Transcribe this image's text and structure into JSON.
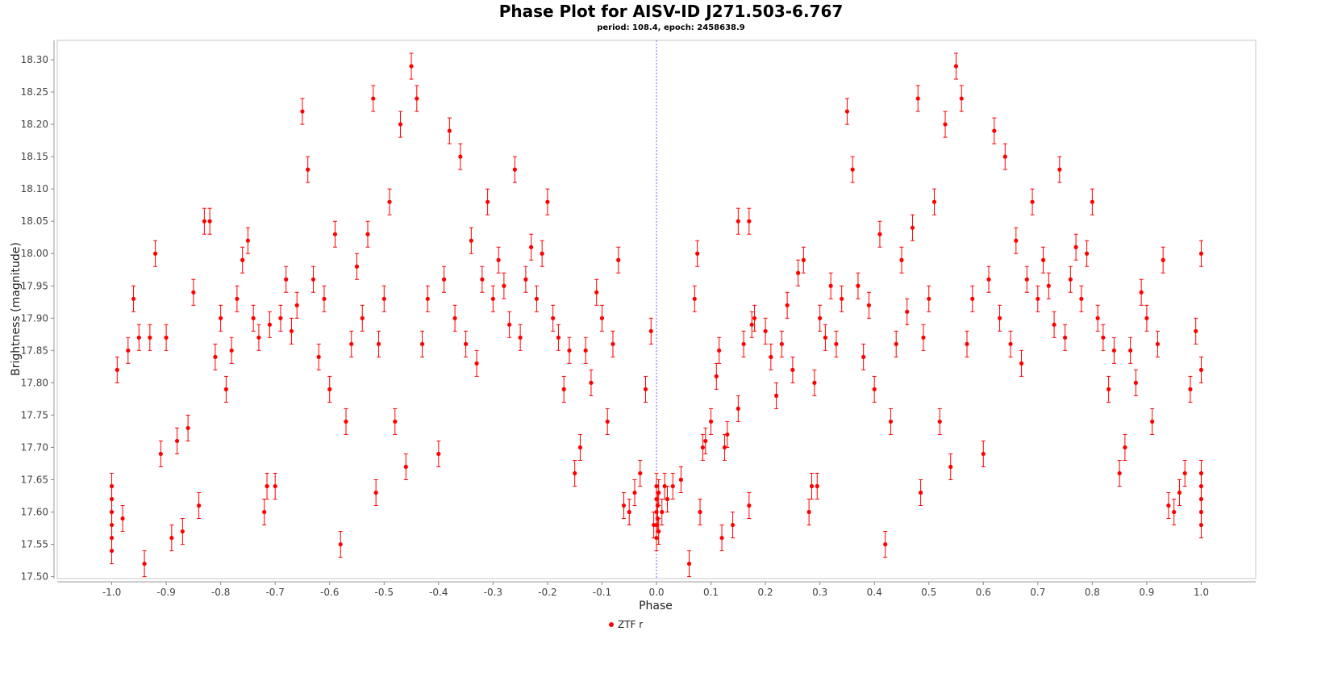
{
  "chart_data": {
    "type": "scatter",
    "title": "Phase Plot for AISV-ID J271.503-6.767",
    "subtitle": "period: 108.4, epoch: 2458638.9",
    "xlabel": "Phase",
    "ylabel": "Brightness (magnitude)",
    "xlim": [
      -1.1,
      1.1
    ],
    "ylim": [
      18.33,
      17.497
    ],
    "y_inverted": true,
    "x_ticks": [
      "-1.0",
      "-0.9",
      "-0.8",
      "-0.7",
      "-0.6",
      "-0.5",
      "-0.4",
      "-0.3",
      "-0.2",
      "-0.1",
      "0.0",
      "0.1",
      "0.2",
      "0.3",
      "0.4",
      "0.5",
      "0.6",
      "0.7",
      "0.8",
      "0.9",
      "1.0"
    ],
    "y_ticks": [
      "17.50",
      "17.55",
      "17.60",
      "17.65",
      "17.70",
      "17.75",
      "17.80",
      "17.85",
      "17.90",
      "17.95",
      "18.00",
      "18.05",
      "18.10",
      "18.15",
      "18.20",
      "18.25",
      "18.30"
    ],
    "reference_line_x": 0.0,
    "grid": false,
    "legend_position": "bottom-center",
    "series": [
      {
        "name": "ZTF r",
        "color": "#ff0000",
        "error_bar": 0.02,
        "points": [
          [
            0.0,
            17.56
          ],
          [
            0.0,
            17.58
          ],
          [
            0.0,
            17.6
          ],
          [
            0.0,
            17.62
          ],
          [
            0.0,
            17.64
          ],
          [
            0.002,
            17.59
          ],
          [
            0.002,
            17.61
          ],
          [
            0.004,
            17.63
          ],
          [
            0.004,
            17.57
          ],
          [
            0.01,
            17.6
          ],
          [
            0.015,
            17.64
          ],
          [
            0.02,
            17.62
          ],
          [
            0.03,
            17.64
          ],
          [
            0.045,
            17.65
          ],
          [
            0.06,
            17.52
          ],
          [
            0.07,
            17.93
          ],
          [
            0.075,
            18.0
          ],
          [
            0.08,
            17.6
          ],
          [
            0.085,
            17.7
          ],
          [
            0.09,
            17.71
          ],
          [
            0.1,
            17.74
          ],
          [
            0.11,
            17.81
          ],
          [
            0.115,
            17.85
          ],
          [
            0.12,
            17.56
          ],
          [
            0.125,
            17.7
          ],
          [
            0.13,
            17.72
          ],
          [
            0.14,
            17.58
          ],
          [
            0.15,
            17.76
          ],
          [
            0.16,
            17.86
          ],
          [
            0.17,
            17.61
          ],
          [
            0.175,
            17.89
          ],
          [
            0.18,
            17.9
          ],
          [
            0.15,
            18.05
          ],
          [
            0.17,
            18.05
          ],
          [
            0.2,
            17.88
          ],
          [
            0.21,
            17.84
          ],
          [
            0.22,
            17.78
          ],
          [
            0.23,
            17.86
          ],
          [
            0.24,
            17.92
          ],
          [
            0.25,
            17.82
          ],
          [
            0.26,
            17.97
          ],
          [
            0.27,
            17.99
          ],
          [
            0.28,
            17.6
          ],
          [
            0.285,
            17.64
          ],
          [
            0.29,
            17.8
          ],
          [
            0.295,
            17.64
          ],
          [
            0.3,
            17.9
          ],
          [
            0.31,
            17.87
          ],
          [
            0.32,
            17.95
          ],
          [
            0.33,
            17.86
          ],
          [
            0.34,
            17.93
          ],
          [
            0.35,
            18.22
          ],
          [
            0.36,
            18.13
          ],
          [
            0.37,
            17.95
          ],
          [
            0.38,
            17.84
          ],
          [
            0.39,
            17.92
          ],
          [
            0.4,
            17.79
          ],
          [
            0.41,
            18.03
          ],
          [
            0.42,
            17.55
          ],
          [
            0.43,
            17.74
          ],
          [
            0.44,
            17.86
          ],
          [
            0.45,
            17.99
          ],
          [
            0.46,
            17.91
          ],
          [
            0.47,
            18.04
          ],
          [
            0.48,
            18.24
          ],
          [
            0.485,
            17.63
          ],
          [
            0.49,
            17.87
          ],
          [
            0.5,
            17.93
          ],
          [
            0.51,
            18.08
          ],
          [
            0.52,
            17.74
          ],
          [
            0.53,
            18.2
          ],
          [
            0.54,
            17.67
          ],
          [
            0.55,
            18.29
          ],
          [
            0.56,
            18.24
          ],
          [
            0.57,
            17.86
          ],
          [
            0.58,
            17.93
          ],
          [
            0.6,
            17.69
          ],
          [
            0.61,
            17.96
          ],
          [
            0.62,
            18.19
          ],
          [
            0.63,
            17.9
          ],
          [
            0.64,
            18.15
          ],
          [
            0.65,
            17.86
          ],
          [
            0.66,
            18.02
          ],
          [
            0.67,
            17.83
          ],
          [
            0.68,
            17.96
          ],
          [
            0.69,
            18.08
          ],
          [
            0.7,
            17.93
          ],
          [
            0.71,
            17.99
          ],
          [
            0.72,
            17.95
          ],
          [
            0.73,
            17.89
          ],
          [
            0.74,
            18.13
          ],
          [
            0.75,
            17.87
          ],
          [
            0.76,
            17.96
          ],
          [
            0.77,
            18.01
          ],
          [
            0.78,
            17.93
          ],
          [
            0.79,
            18.0
          ],
          [
            0.8,
            18.08
          ],
          [
            0.81,
            17.9
          ],
          [
            0.82,
            17.87
          ],
          [
            0.83,
            17.79
          ],
          [
            0.84,
            17.85
          ],
          [
            0.85,
            17.66
          ],
          [
            0.86,
            17.7
          ],
          [
            0.87,
            17.85
          ],
          [
            0.88,
            17.8
          ],
          [
            0.89,
            17.94
          ],
          [
            0.9,
            17.9
          ],
          [
            0.91,
            17.74
          ],
          [
            0.92,
            17.86
          ],
          [
            0.93,
            17.99
          ],
          [
            0.94,
            17.61
          ],
          [
            0.95,
            17.6
          ],
          [
            0.96,
            17.63
          ],
          [
            0.97,
            17.66
          ],
          [
            0.98,
            17.79
          ],
          [
            0.99,
            17.88
          ],
          [
            1.0,
            17.58
          ],
          [
            1.0,
            17.6
          ],
          [
            1.0,
            17.62
          ],
          [
            1.0,
            17.64
          ],
          [
            1.0,
            17.66
          ],
          [
            1.0,
            17.82
          ],
          [
            1.0,
            18.0
          ],
          [
            -1.0,
            17.54
          ],
          [
            -1.0,
            17.56
          ],
          [
            -1.0,
            17.58
          ],
          [
            -1.0,
            17.6
          ],
          [
            -1.0,
            17.62
          ],
          [
            -1.0,
            17.64
          ],
          [
            -0.99,
            17.82
          ],
          [
            -0.98,
            17.59
          ],
          [
            -0.97,
            17.85
          ],
          [
            -0.96,
            17.93
          ],
          [
            -0.95,
            17.87
          ],
          [
            -0.94,
            17.52
          ],
          [
            -0.93,
            17.87
          ],
          [
            -0.92,
            18.0
          ],
          [
            -0.91,
            17.69
          ],
          [
            -0.9,
            17.87
          ],
          [
            -0.89,
            17.56
          ],
          [
            -0.88,
            17.71
          ],
          [
            -0.87,
            17.57
          ],
          [
            -0.86,
            17.73
          ],
          [
            -0.85,
            17.94
          ],
          [
            -0.84,
            17.61
          ],
          [
            -0.83,
            18.05
          ],
          [
            -0.82,
            18.05
          ],
          [
            -0.81,
            17.84
          ],
          [
            -0.8,
            17.9
          ],
          [
            -0.79,
            17.79
          ],
          [
            -0.78,
            17.85
          ],
          [
            -0.77,
            17.93
          ],
          [
            -0.76,
            17.99
          ],
          [
            -0.75,
            18.02
          ],
          [
            -0.74,
            17.9
          ],
          [
            -0.73,
            17.87
          ],
          [
            -0.72,
            17.6
          ],
          [
            -0.715,
            17.64
          ],
          [
            -0.71,
            17.89
          ],
          [
            -0.7,
            17.64
          ],
          [
            -0.69,
            17.9
          ],
          [
            -0.68,
            17.96
          ],
          [
            -0.67,
            17.88
          ],
          [
            -0.66,
            17.92
          ],
          [
            -0.65,
            18.22
          ],
          [
            -0.64,
            18.13
          ],
          [
            -0.63,
            17.96
          ],
          [
            -0.62,
            17.84
          ],
          [
            -0.61,
            17.93
          ],
          [
            -0.6,
            17.79
          ],
          [
            -0.59,
            18.03
          ],
          [
            -0.58,
            17.55
          ],
          [
            -0.57,
            17.74
          ],
          [
            -0.56,
            17.86
          ],
          [
            -0.55,
            17.98
          ],
          [
            -0.54,
            17.9
          ],
          [
            -0.53,
            18.03
          ],
          [
            -0.52,
            18.24
          ],
          [
            -0.515,
            17.63
          ],
          [
            -0.51,
            17.86
          ],
          [
            -0.5,
            17.93
          ],
          [
            -0.49,
            18.08
          ],
          [
            -0.48,
            17.74
          ],
          [
            -0.47,
            18.2
          ],
          [
            -0.46,
            17.67
          ],
          [
            -0.45,
            18.29
          ],
          [
            -0.44,
            18.24
          ],
          [
            -0.43,
            17.86
          ],
          [
            -0.42,
            17.93
          ],
          [
            -0.4,
            17.69
          ],
          [
            -0.39,
            17.96
          ],
          [
            -0.38,
            18.19
          ],
          [
            -0.37,
            17.9
          ],
          [
            -0.36,
            18.15
          ],
          [
            -0.35,
            17.86
          ],
          [
            -0.34,
            18.02
          ],
          [
            -0.33,
            17.83
          ],
          [
            -0.32,
            17.96
          ],
          [
            -0.31,
            18.08
          ],
          [
            -0.3,
            17.93
          ],
          [
            -0.29,
            17.99
          ],
          [
            -0.28,
            17.95
          ],
          [
            -0.27,
            17.89
          ],
          [
            -0.26,
            18.13
          ],
          [
            -0.25,
            17.87
          ],
          [
            -0.24,
            17.96
          ],
          [
            -0.23,
            18.01
          ],
          [
            -0.22,
            17.93
          ],
          [
            -0.21,
            18.0
          ],
          [
            -0.2,
            18.08
          ],
          [
            -0.19,
            17.9
          ],
          [
            -0.18,
            17.87
          ],
          [
            -0.17,
            17.79
          ],
          [
            -0.16,
            17.85
          ],
          [
            -0.15,
            17.66
          ],
          [
            -0.14,
            17.7
          ],
          [
            -0.13,
            17.85
          ],
          [
            -0.12,
            17.8
          ],
          [
            -0.11,
            17.94
          ],
          [
            -0.1,
            17.9
          ],
          [
            -0.09,
            17.74
          ],
          [
            -0.08,
            17.86
          ],
          [
            -0.07,
            17.99
          ],
          [
            -0.06,
            17.61
          ],
          [
            -0.05,
            17.6
          ],
          [
            -0.04,
            17.63
          ],
          [
            -0.03,
            17.66
          ],
          [
            -0.02,
            17.79
          ],
          [
            -0.01,
            17.88
          ],
          [
            -0.005,
            17.58
          ]
        ]
      }
    ]
  }
}
